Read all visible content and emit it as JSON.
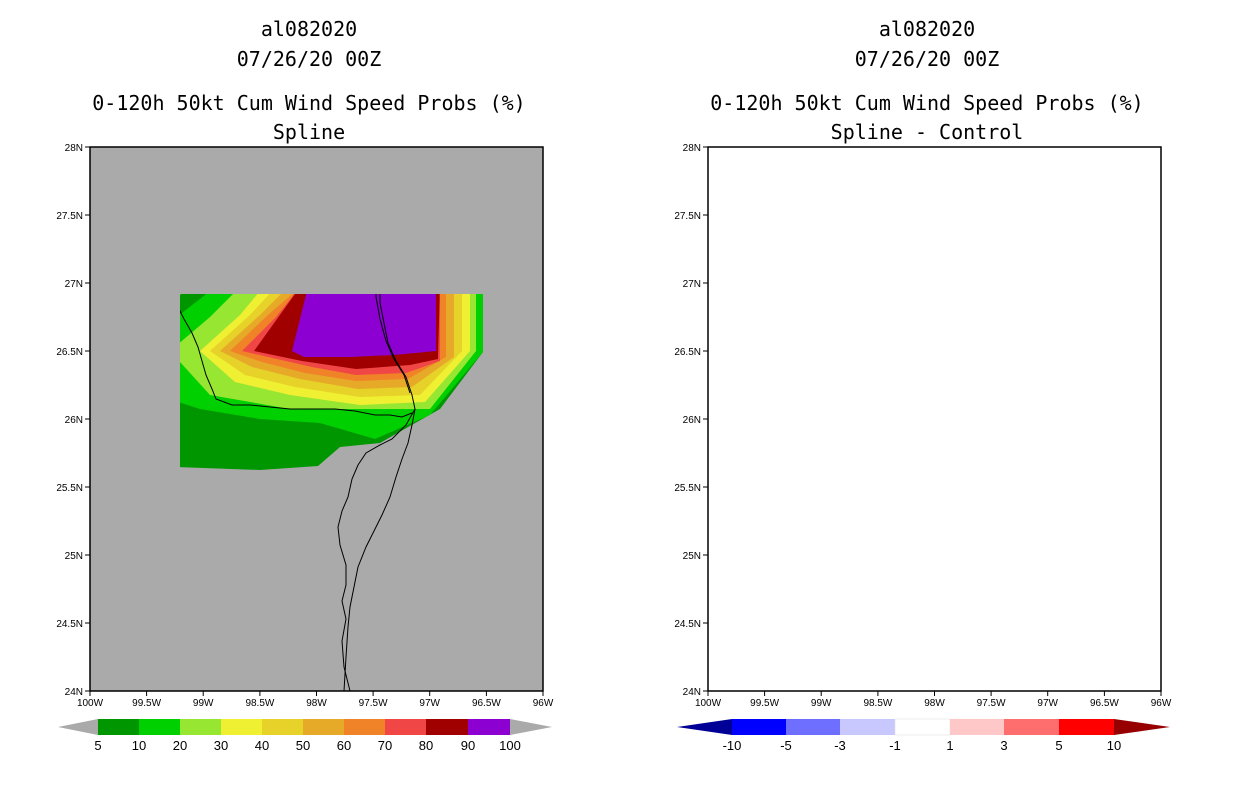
{
  "colors": {
    "land_bg": "#aaaaaa",
    "ocean_bg": "#ffffff",
    "prob_fills": [
      "#009600",
      "#00d000",
      "#96e632",
      "#f0f032",
      "#e6d228",
      "#e6aa28",
      "#f08228",
      "#f04646",
      "#a00000",
      "#8c00d2"
    ],
    "diff_fills": [
      "#000096",
      "#0000ff",
      "#6e6eff",
      "#c8c8ff",
      "#ffffff",
      "#ffc8c8",
      "#ff6e6e",
      "#ff0000",
      "#960000"
    ]
  },
  "left": {
    "storm_id": "al082020",
    "datetime": "07/26/20 00Z",
    "product": "0-120h 50kt Cum Wind Speed Probs (%)",
    "subtitle": "Spline"
  },
  "right": {
    "storm_id": "al082020",
    "datetime": "07/26/20 00Z",
    "product": "0-120h 50kt Cum Wind Speed Probs (%)",
    "subtitle": "Spline - Control"
  },
  "axes": {
    "lat_labels": [
      "28N",
      "27.5N",
      "27N",
      "26.5N",
      "26N",
      "25.5N",
      "25N",
      "24.5N",
      "24N"
    ],
    "lon_labels": [
      "100W",
      "99.5W",
      "99W",
      "98.5W",
      "98W",
      "97.5W",
      "97W",
      "96.5W",
      "96W"
    ],
    "lat_range": [
      24,
      28
    ],
    "lon_range": [
      -100,
      -96
    ]
  },
  "legend_left": {
    "labels": [
      "5",
      "10",
      "20",
      "30",
      "40",
      "50",
      "60",
      "70",
      "80",
      "90",
      "100"
    ]
  },
  "legend_right": {
    "labels": [
      "-10",
      "-5",
      "-3",
      "-1",
      "1",
      "3",
      "5",
      "10"
    ]
  }
}
